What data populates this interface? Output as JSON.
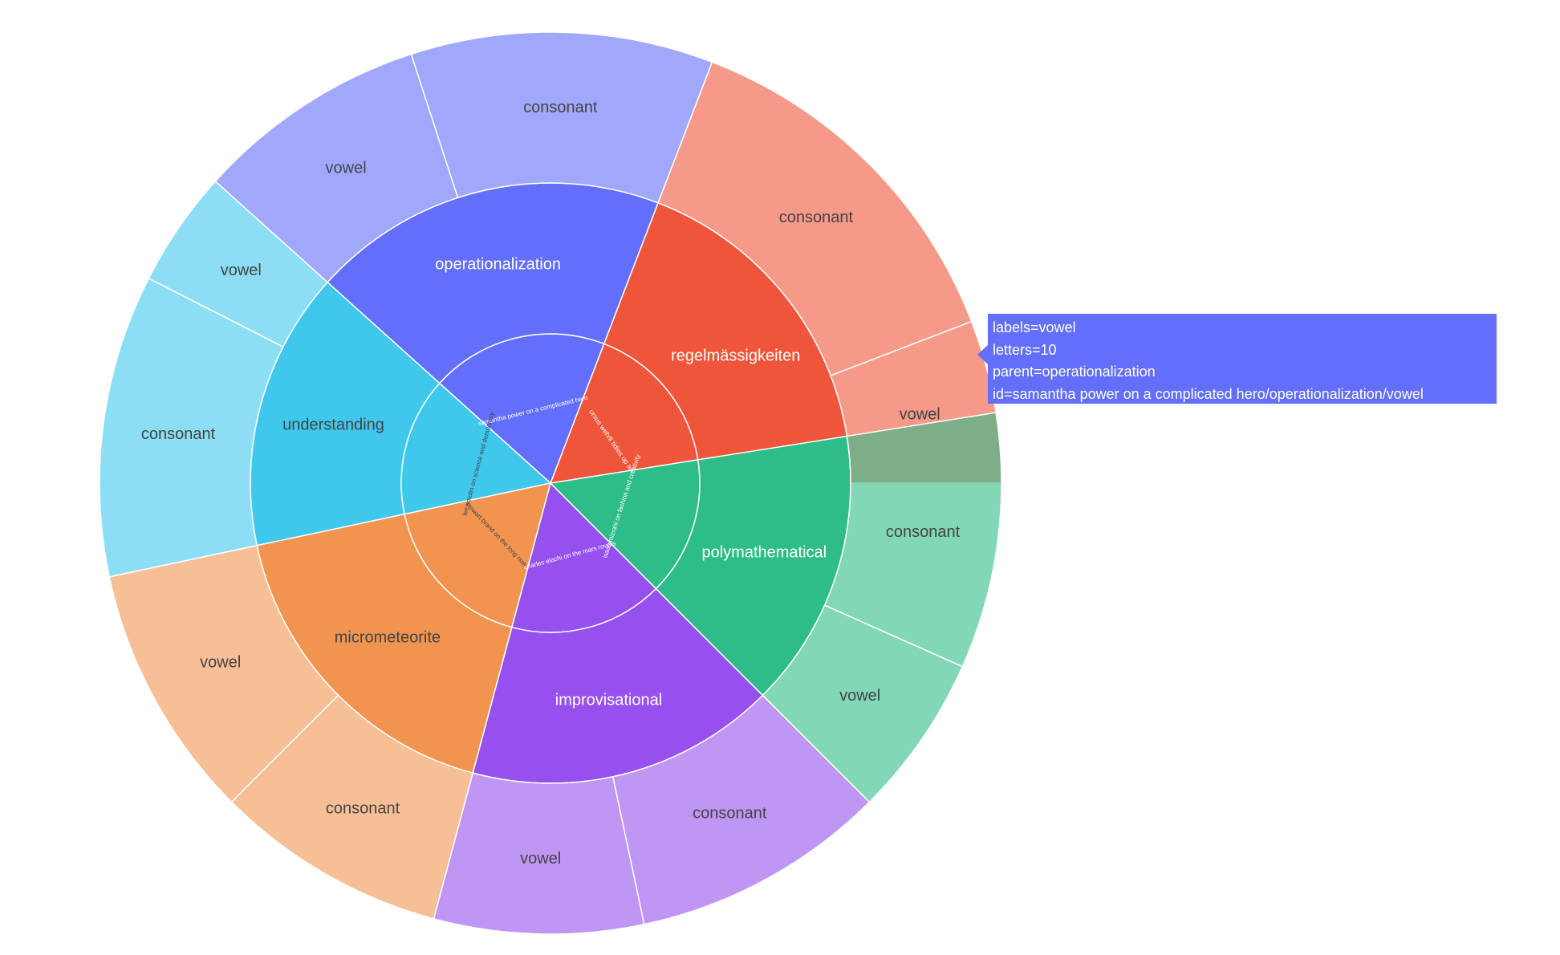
{
  "chart_data": {
    "type": "sunburst",
    "value_field": "letters",
    "nodes": [
      {
        "id": "ursus wehrli tidies up art",
        "label": "ursus wehrli tidies up art",
        "parent": "",
        "value": 23,
        "color": "#ef553b"
      },
      {
        "id": "ursus wehrli tidies up art/regelmässigkeiten",
        "label": "regelmässigkeiten",
        "parent": "ursus wehrli tidies up art",
        "value": 23,
        "color": "#ef553b"
      },
      {
        "id": "ursus wehrli tidies up art/regelmässigkeiten/vowel",
        "label": "vowel",
        "parent": "regelmässigkeiten",
        "value": 7,
        "color": "#ef553b"
      },
      {
        "id": "ursus wehrli tidies up art/regelmässigkeiten/consonant",
        "label": "consonant",
        "parent": "regelmässigkeiten",
        "value": 16,
        "color": "#ef553b"
      },
      {
        "id": "samantha power on a complicated hero",
        "label": "samantha power on a complicated hero",
        "parent": "",
        "value": 23,
        "color": "#636efa"
      },
      {
        "id": "samantha power on a complicated hero/operationalization",
        "label": "operationalization",
        "parent": "samantha power on a complicated hero",
        "value": 23,
        "color": "#636efa"
      },
      {
        "id": "samantha power on a complicated hero/operationalization/consonant",
        "label": "consonant",
        "parent": "operationalization",
        "value": 13,
        "color": "#636efa"
      },
      {
        "id": "samantha power on a complicated hero/operationalization/vowel",
        "label": "vowel",
        "parent": "operationalization",
        "value": 10,
        "color": "#636efa"
      },
      {
        "id": "lee smolin on science and democracy",
        "label": "lee smolin on science and democracy",
        "parent": "",
        "value": 18,
        "color": "#3fc8ec"
      },
      {
        "id": "lee smolin on science and democracy/understanding",
        "label": "understanding",
        "parent": "lee smolin on science and democracy",
        "value": 18,
        "color": "#3fc8ec"
      },
      {
        "id": "lee smolin on science and democracy/understanding/vowel",
        "label": "vowel",
        "parent": "understanding",
        "value": 5,
        "color": "#3fc8ec"
      },
      {
        "id": "lee smolin on science and democracy/understanding/consonant",
        "label": "consonant",
        "parent": "understanding",
        "value": 13,
        "color": "#3fc8ec"
      },
      {
        "id": "stewart brand on the long now",
        "label": "stewart brand on the long now",
        "parent": "",
        "value": 21,
        "color": "#f09450"
      },
      {
        "id": "stewart brand on the long now/micrometeorite",
        "label": "micrometeorite",
        "parent": "stewart brand on the long now",
        "value": 21,
        "color": "#f09450"
      },
      {
        "id": "stewart brand on the long now/micrometeorite/vowel",
        "label": "vowel",
        "parent": "micrometeorite",
        "value": 11,
        "color": "#f09450"
      },
      {
        "id": "stewart brand on the long now/micrometeorite/consonant",
        "label": "consonant",
        "parent": "micrometeorite",
        "value": 10,
        "color": "#f09450"
      },
      {
        "id": "charles elachi on the mars rovers",
        "label": "charles elachi on the mars rovers",
        "parent": "",
        "value": 20,
        "color": "#9550ed"
      },
      {
        "id": "charles elachi on the mars rovers/improvisational",
        "label": "improvisational",
        "parent": "charles elachi on the mars rovers",
        "value": 20,
        "color": "#9550ed"
      },
      {
        "id": "charles elachi on the mars rovers/improvisational/vowel",
        "label": "vowel",
        "parent": "improvisational",
        "value": 9,
        "color": "#9550ed"
      },
      {
        "id": "charles elachi on the mars rovers/improvisational/consonant",
        "label": "consonant",
        "parent": "improvisational",
        "value": 11,
        "color": "#9550ed"
      },
      {
        "id": "isaac mizrahi on fashion and creativity",
        "label": "isaac mizrahi on fashion and creativity",
        "parent": "",
        "value": 18,
        "color": "#2ebd86"
      },
      {
        "id": "isaac mizrahi on fashion and creativity/polymathematical",
        "label": "polymathematical",
        "parent": "isaac mizrahi on fashion and creativity",
        "value": 18,
        "color": "#2ebd86"
      },
      {
        "id": "isaac mizrahi on fashion and creativity/polymathematical/vowel",
        "label": "vowel",
        "parent": "polymathematical",
        "value": 7,
        "color": "#2ebd86"
      },
      {
        "id": "isaac mizrahi on fashion and creativity/polymathematical/consonant",
        "label": "consonant",
        "parent": "polymathematical",
        "value": 11,
        "color": "#2ebd86"
      }
    ]
  },
  "tooltip": {
    "line1": "labels=vowel",
    "line2": "letters=10",
    "line3": "parent=operationalization",
    "line4": "id=samantha power on a complicated hero/operationalization/vowel"
  }
}
